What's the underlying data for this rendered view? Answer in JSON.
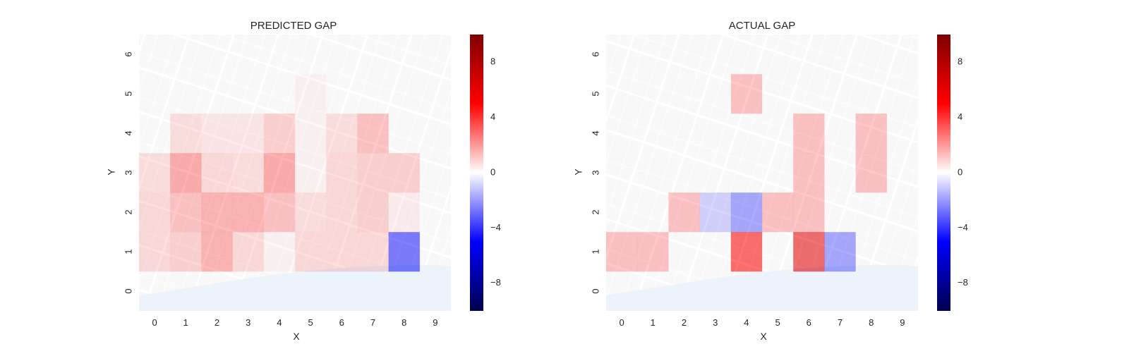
{
  "chart_data": [
    {
      "type": "heatmap",
      "title": "PREDICTED GAP",
      "xlabel": "X",
      "ylabel": "Y",
      "x": [
        0,
        1,
        2,
        3,
        4,
        5,
        6,
        7,
        8,
        9
      ],
      "y": [
        0,
        1,
        2,
        3,
        4,
        5,
        6
      ],
      "colorbar": {
        "ticks": [
          8,
          4,
          0,
          -4,
          -8
        ],
        "labels": [
          "8",
          "4",
          "0",
          "−4",
          "−8"
        ],
        "range": [
          -10,
          10
        ],
        "cmap": "seismic"
      },
      "values": [
        [
          0.0,
          0.0,
          0.0,
          0.0,
          0.0,
          0.0,
          0.0,
          0.0,
          0.0,
          0.0
        ],
        [
          1.2,
          1.5,
          2.5,
          1.2,
          0.3,
          1.2,
          1.2,
          1.2,
          -4.5,
          0.0
        ],
        [
          1.2,
          2.0,
          2.5,
          2.5,
          2.0,
          1.0,
          1.2,
          1.5,
          0.5,
          0.0
        ],
        [
          1.0,
          2.8,
          1.2,
          1.0,
          2.8,
          0.3,
          1.2,
          1.5,
          1.5,
          0.0
        ],
        [
          0.0,
          1.0,
          0.7,
          0.7,
          1.5,
          0.3,
          1.0,
          2.0,
          0.0,
          0.0
        ],
        [
          0.0,
          0.0,
          0.0,
          0.0,
          0.0,
          0.3,
          0.0,
          0.0,
          0.0,
          0.0
        ],
        [
          0.0,
          0.0,
          0.0,
          0.0,
          0.0,
          0.0,
          0.0,
          0.0,
          0.0,
          0.0
        ]
      ]
    },
    {
      "type": "heatmap",
      "title": "ACTUAL GAP",
      "xlabel": "X",
      "ylabel": "Y",
      "x": [
        0,
        1,
        2,
        3,
        4,
        5,
        6,
        7,
        8,
        9
      ],
      "y": [
        0,
        1,
        2,
        3,
        4,
        5,
        6
      ],
      "colorbar": {
        "ticks": [
          8,
          4,
          0,
          -4,
          -8
        ],
        "labels": [
          "8",
          "4",
          "0",
          "−4",
          "−8"
        ],
        "range": [
          -10,
          10
        ],
        "cmap": "seismic"
      },
      "values": [
        [
          0.0,
          0.0,
          0.0,
          0.0,
          0.0,
          0.0,
          0.0,
          0.0,
          0.0,
          0.0
        ],
        [
          2.0,
          2.0,
          0.0,
          0.0,
          5.0,
          0.0,
          6.0,
          -3.0,
          0.0,
          0.0
        ],
        [
          0.0,
          0.0,
          2.0,
          -1.5,
          -3.0,
          2.0,
          2.0,
          0.0,
          0.0,
          0.0
        ],
        [
          0.0,
          0.0,
          0.0,
          0.0,
          0.0,
          0.0,
          2.0,
          0.0,
          2.0,
          0.0
        ],
        [
          0.0,
          0.0,
          0.0,
          0.0,
          0.0,
          0.0,
          2.0,
          0.0,
          2.0,
          0.0
        ],
        [
          0.0,
          0.0,
          0.0,
          0.0,
          2.0,
          0.0,
          0.0,
          0.0,
          0.0,
          0.0
        ],
        [
          0.0,
          0.0,
          0.0,
          0.0,
          0.0,
          0.0,
          0.0,
          0.0,
          0.0,
          0.0
        ]
      ]
    }
  ]
}
